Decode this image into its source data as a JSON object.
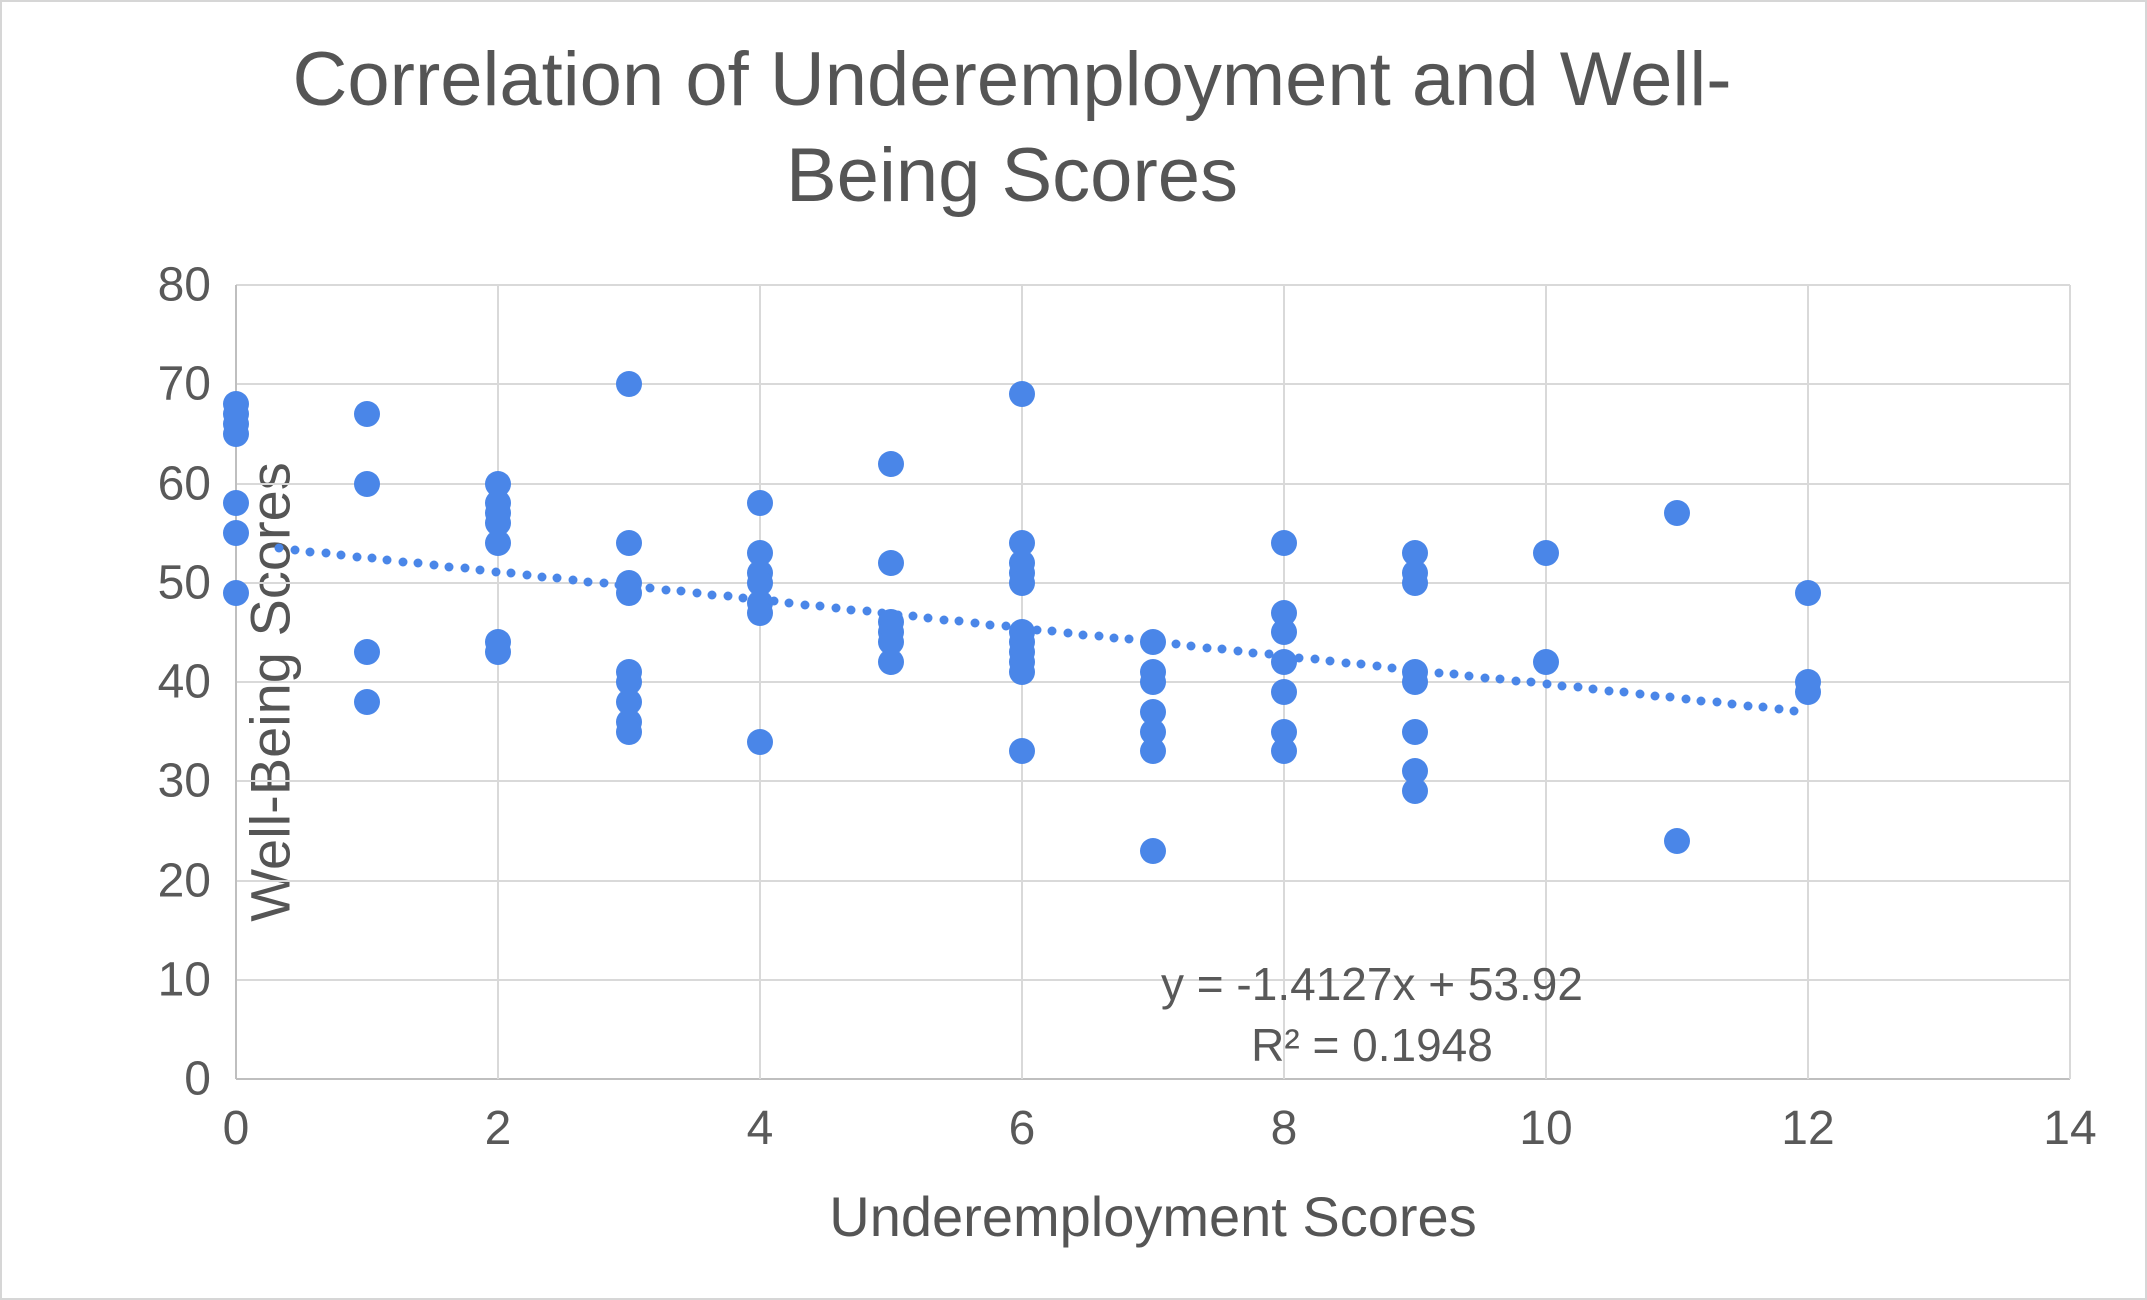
{
  "title": "Correlation of Underemployment and Well-Being Scores",
  "equation": {
    "line1": "y = -1.4127x + 53.92",
    "line2": "R² = 0.1948"
  },
  "chart_data": {
    "type": "scatter",
    "title": "Correlation of Underemployment and Well-Being Scores",
    "xlabel": "Underemployment Scores",
    "ylabel": "Well-Being Scores",
    "xlim": [
      0,
      14
    ],
    "ylim": [
      0,
      80
    ],
    "x_ticks": [
      0,
      2,
      4,
      6,
      8,
      10,
      12,
      14
    ],
    "y_ticks": [
      0,
      10,
      20,
      30,
      40,
      50,
      60,
      70,
      80
    ],
    "grid": "on",
    "legend": "none",
    "points": [
      [
        0,
        68
      ],
      [
        0,
        67
      ],
      [
        0,
        66
      ],
      [
        0,
        65
      ],
      [
        0,
        58
      ],
      [
        0,
        55
      ],
      [
        0,
        49
      ],
      [
        1,
        67
      ],
      [
        1,
        60
      ],
      [
        1,
        43
      ],
      [
        1,
        38
      ],
      [
        2,
        60
      ],
      [
        2,
        58
      ],
      [
        2,
        57
      ],
      [
        2,
        56
      ],
      [
        2,
        54
      ],
      [
        2,
        44
      ],
      [
        2,
        43
      ],
      [
        3,
        70
      ],
      [
        3,
        54
      ],
      [
        3,
        50
      ],
      [
        3,
        49
      ],
      [
        3,
        41
      ],
      [
        3,
        40
      ],
      [
        3,
        38
      ],
      [
        3,
        36
      ],
      [
        3,
        35
      ],
      [
        4,
        58
      ],
      [
        4,
        53
      ],
      [
        4,
        51
      ],
      [
        4,
        50
      ],
      [
        4,
        48
      ],
      [
        4,
        47
      ],
      [
        4,
        34
      ],
      [
        5,
        62
      ],
      [
        5,
        52
      ],
      [
        5,
        46
      ],
      [
        5,
        45
      ],
      [
        5,
        44
      ],
      [
        5,
        42
      ],
      [
        6,
        69
      ],
      [
        6,
        54
      ],
      [
        6,
        52
      ],
      [
        6,
        51
      ],
      [
        6,
        50
      ],
      [
        6,
        45
      ],
      [
        6,
        44
      ],
      [
        6,
        43
      ],
      [
        6,
        42
      ],
      [
        6,
        41
      ],
      [
        6,
        33
      ],
      [
        7,
        44
      ],
      [
        7,
        41
      ],
      [
        7,
        40
      ],
      [
        7,
        37
      ],
      [
        7,
        35
      ],
      [
        7,
        33
      ],
      [
        7,
        23
      ],
      [
        8,
        54
      ],
      [
        8,
        47
      ],
      [
        8,
        45
      ],
      [
        8,
        42
      ],
      [
        8,
        39
      ],
      [
        8,
        35
      ],
      [
        8,
        33
      ],
      [
        9,
        53
      ],
      [
        9,
        51
      ],
      [
        9,
        50
      ],
      [
        9,
        41
      ],
      [
        9,
        40
      ],
      [
        9,
        35
      ],
      [
        9,
        31
      ],
      [
        9,
        29
      ],
      [
        10,
        53
      ],
      [
        10,
        42
      ],
      [
        11,
        57
      ],
      [
        11,
        24
      ],
      [
        12,
        49
      ],
      [
        12,
        40
      ],
      [
        12,
        39
      ]
    ],
    "trendline": {
      "slope": -1.4127,
      "intercept": 53.92,
      "r_squared": 0.1948,
      "style": "dotted",
      "x_start": 0.33,
      "x_end": 11.92,
      "equation_label": "y = -1.4127x + 53.92",
      "r_squared_label": "R² = 0.1948"
    },
    "colors": {
      "point": "#4a86e8",
      "trend": "#4a86e8",
      "gridline": "#d9d9d9",
      "axis_line": "#bfbfbf",
      "text": "#595959",
      "title_text": "#555555",
      "background": "#ffffff"
    }
  }
}
